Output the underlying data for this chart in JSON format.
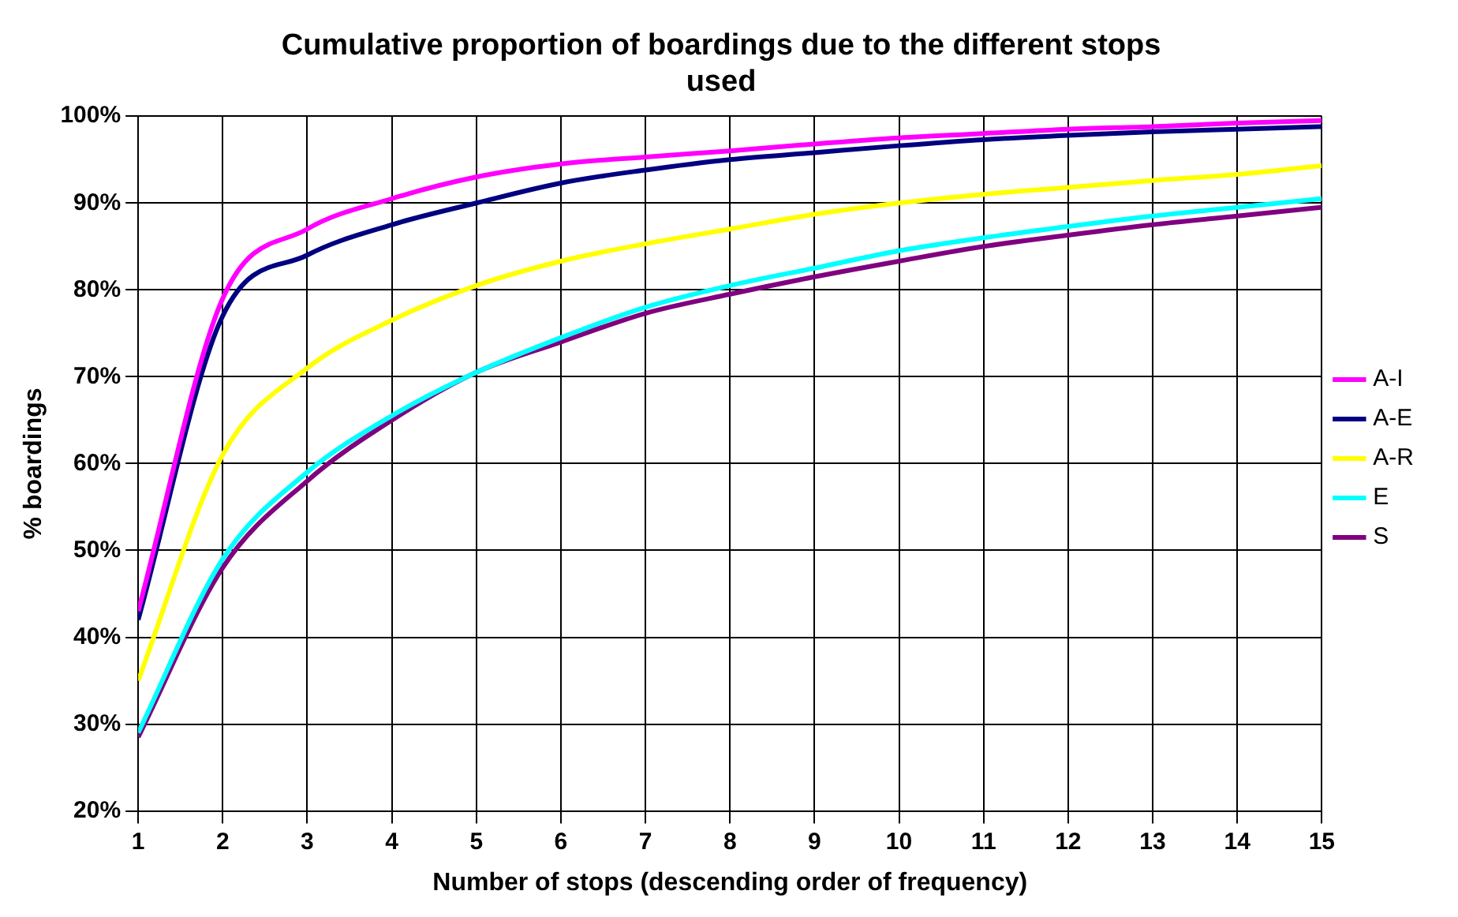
{
  "chart_data": {
    "type": "line",
    "title": "Cumulative proportion of boardings due to the different stops used",
    "xlabel": "Number of stops (descending order of frequency)",
    "ylabel": "% boardings",
    "x": [
      1,
      2,
      3,
      4,
      5,
      6,
      7,
      8,
      9,
      10,
      11,
      12,
      13,
      14,
      15
    ],
    "series": [
      {
        "name": "A-I",
        "color": "#ff00ff",
        "values": [
          43,
          79,
          87,
          90.5,
          93,
          94.5,
          95.3,
          96,
          96.8,
          97.5,
          98,
          98.5,
          98.8,
          99.2,
          99.5
        ]
      },
      {
        "name": "A-E",
        "color": "#000080",
        "values": [
          42,
          77,
          84,
          87.5,
          90,
          92.3,
          93.8,
          95,
          95.8,
          96.6,
          97.3,
          97.8,
          98.2,
          98.5,
          98.8
        ]
      },
      {
        "name": "A-R",
        "color": "#ffff00",
        "values": [
          35,
          61,
          71,
          76.5,
          80.5,
          83.3,
          85.3,
          87,
          88.7,
          90,
          91,
          91.8,
          92.6,
          93.3,
          94.3
        ]
      },
      {
        "name": "E",
        "color": "#00ffff",
        "values": [
          29,
          49,
          59,
          65.5,
          70.5,
          74.5,
          78,
          80.5,
          82.5,
          84.5,
          86,
          87.3,
          88.5,
          89.5,
          90.5
        ]
      },
      {
        "name": "S",
        "color": "#800080",
        "values": [
          28.5,
          48,
          58,
          65,
          70.5,
          74,
          77.3,
          79.5,
          81.5,
          83.3,
          85,
          86.3,
          87.5,
          88.5,
          89.5
        ]
      }
    ],
    "xlim": [
      1,
      15
    ],
    "xticks": [
      1,
      2,
      3,
      4,
      5,
      6,
      7,
      8,
      9,
      10,
      11,
      12,
      13,
      14,
      15
    ],
    "ylim": [
      20,
      100
    ],
    "yticks": [
      {
        "value": 20,
        "label": "20%"
      },
      {
        "value": 30,
        "label": "30%"
      },
      {
        "value": 40,
        "label": "40%"
      },
      {
        "value": 50,
        "label": "50%"
      },
      {
        "value": 60,
        "label": "60%"
      },
      {
        "value": 70,
        "label": "70%"
      },
      {
        "value": 80,
        "label": "80%"
      },
      {
        "value": 90,
        "label": "90%"
      },
      {
        "value": 100,
        "label": "100%"
      }
    ],
    "grid": true,
    "legend": "right",
    "marker": "none",
    "line_style": "solid"
  }
}
